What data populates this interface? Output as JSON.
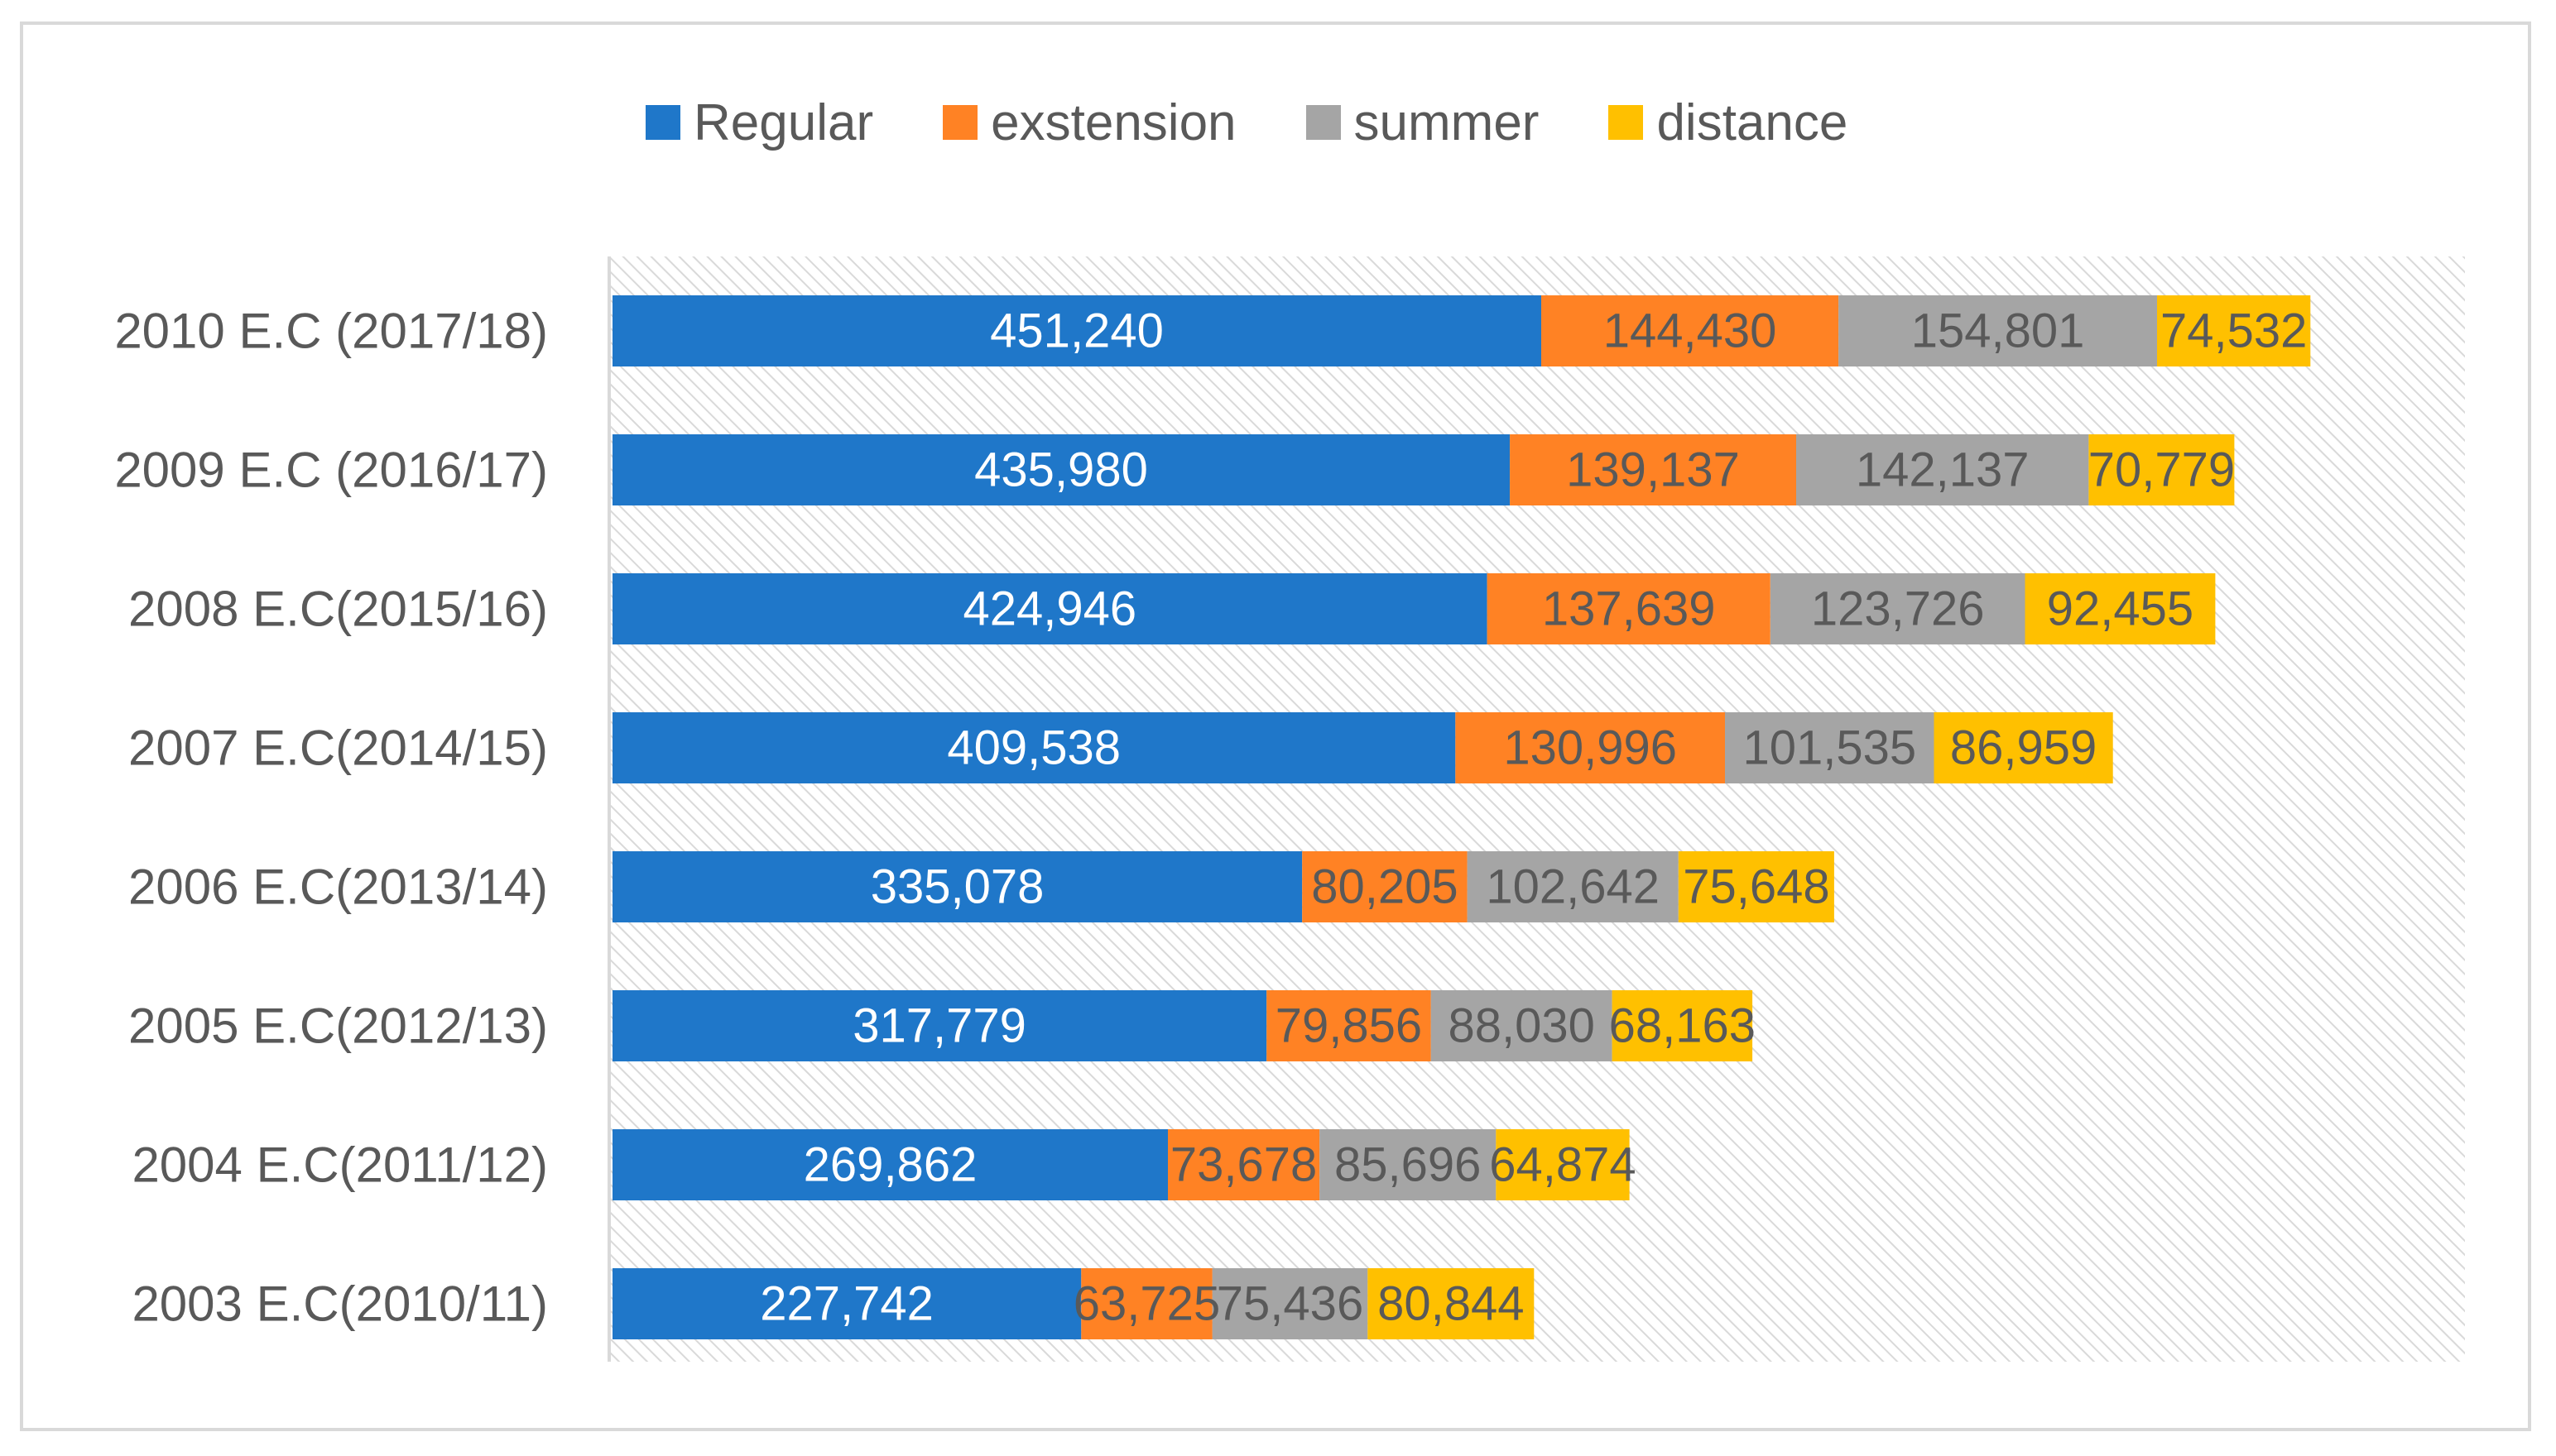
{
  "chart_data": {
    "type": "bar",
    "orientation": "horizontal",
    "stacked": true,
    "title": "",
    "xlabel": "",
    "ylabel": "",
    "grid": false,
    "legend_position": "top",
    "xlim": [
      0,
      1000000
    ],
    "categories": [
      "2010 E.C (2017/18)",
      "2009 E.C (2016/17)",
      "2008 E.C(2015/16)",
      "2007 E.C(2014/15)",
      "2006 E.C(2013/14)",
      "2005 E.C(2012/13)",
      "2004 E.C(2011/12)",
      "2003 E.C(2010/11)"
    ],
    "series": [
      {
        "name": "Regular",
        "color": "#1f77c9",
        "label_color": "#ffffff",
        "values": [
          451240,
          435980,
          424946,
          409538,
          335078,
          317779,
          269862,
          227742
        ],
        "labels": [
          "451,240",
          "435,980",
          "424,946",
          "409,538",
          "335,078",
          "317,779",
          "269,862",
          "227,742"
        ]
      },
      {
        "name": "exstension",
        "color": "#ff8224",
        "label_color": "#595959",
        "values": [
          144430,
          139137,
          137639,
          130996,
          80205,
          79856,
          73678,
          63725
        ],
        "labels": [
          "144,430",
          "139,137",
          "137,639",
          "130,996",
          "80,205",
          "79,856",
          "73,678",
          "63,725"
        ]
      },
      {
        "name": "summer",
        "color": "#a5a5a5",
        "label_color": "#595959",
        "values": [
          154801,
          142137,
          123726,
          101535,
          102642,
          88030,
          85696,
          75436
        ],
        "labels": [
          "154,801",
          "142,137",
          "123,726",
          "101,535",
          "102,642",
          "88,030",
          "85,696",
          "75,436"
        ]
      },
      {
        "name": "distance",
        "color": "#ffc000",
        "label_color": "#595959",
        "values": [
          74532,
          70779,
          92455,
          86959,
          75648,
          68163,
          64874,
          80844
        ],
        "labels": [
          "74,532",
          "70,779",
          "92,455",
          "86,959",
          "75,648",
          "68,163",
          "64,874",
          "80,844"
        ]
      }
    ]
  }
}
